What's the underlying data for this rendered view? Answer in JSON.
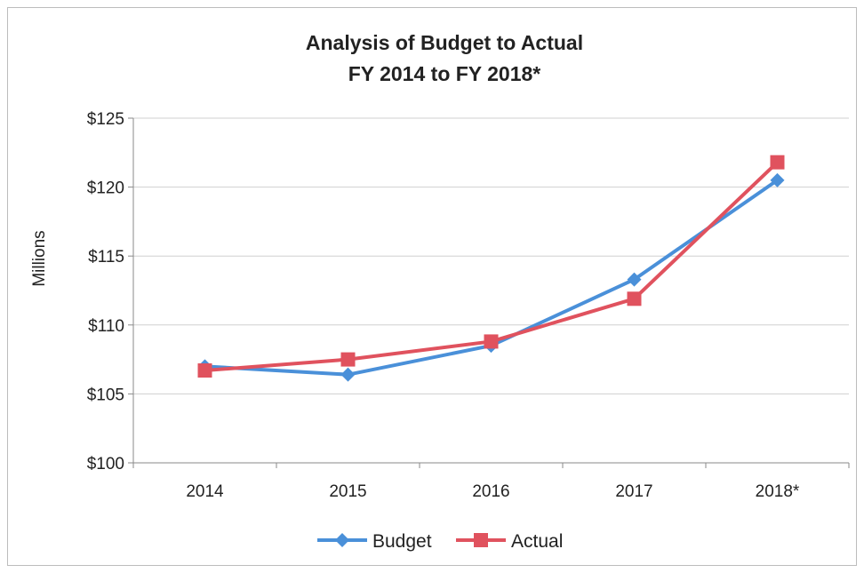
{
  "chart_data": {
    "type": "line",
    "title": [
      "Analysis of Budget to Actual",
      "FY 2014 to FY 2018*"
    ],
    "ylabel": "Millions",
    "xlabel": "",
    "categories": [
      "2014",
      "2015",
      "2016",
      "2017",
      "2018*"
    ],
    "ylim": [
      100,
      125
    ],
    "yticks": [
      100,
      105,
      110,
      115,
      120,
      125
    ],
    "ytick_labels": [
      "$100",
      "$105",
      "$110",
      "$115",
      "$120",
      "$125"
    ],
    "grid": "horizontal",
    "legend_position": "bottom",
    "series": [
      {
        "name": "Budget",
        "values": [
          107.0,
          106.4,
          108.5,
          113.3,
          120.5
        ],
        "color": "#4a90d9",
        "marker": "diamond"
      },
      {
        "name": "Actual",
        "values": [
          106.7,
          107.5,
          108.8,
          111.9,
          121.8
        ],
        "color": "#e0525e",
        "marker": "square"
      }
    ]
  }
}
